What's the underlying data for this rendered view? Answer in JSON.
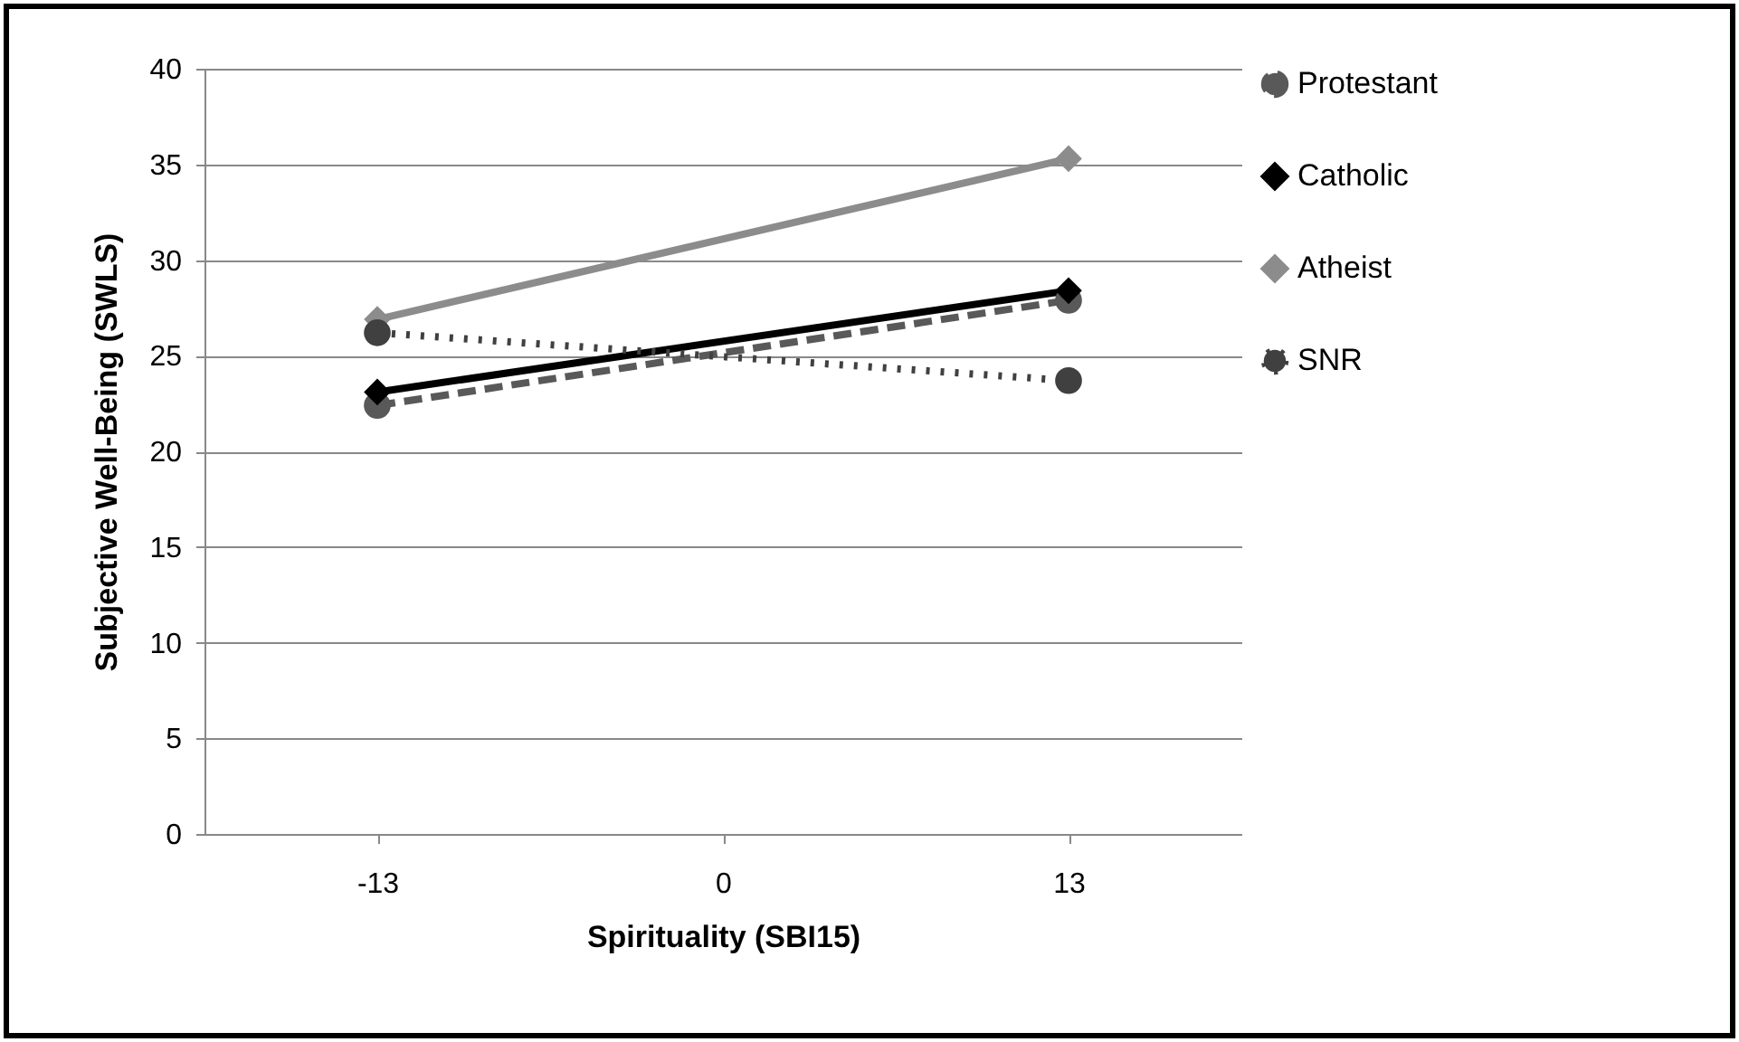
{
  "chart_data": {
    "type": "line",
    "xlabel": "Spirituality (SBI15)",
    "ylabel": "Subjective Well-Being (SWLS)",
    "categories": [
      "-13",
      "0",
      "13"
    ],
    "series": [
      {
        "name": "Protestant",
        "color": "#595959",
        "marker": "circle",
        "line_style": "dashed",
        "values": [
          22.4,
          null,
          27.9
        ]
      },
      {
        "name": "Catholic",
        "color": "#000000",
        "marker": "diamond",
        "line_style": "solid",
        "values": [
          23.1,
          null,
          28.4
        ]
      },
      {
        "name": "Atheist",
        "color": "#8c8c8c",
        "marker": "diamond",
        "line_style": "solid",
        "values": [
          26.9,
          null,
          35.3
        ]
      },
      {
        "name": "SNR",
        "color": "#404040",
        "marker": "circle",
        "line_style": "dotted",
        "values": [
          26.2,
          null,
          23.7
        ]
      }
    ],
    "ylim": [
      0,
      40
    ],
    "yticks": [
      0,
      5,
      10,
      15,
      20,
      25,
      30,
      35,
      40
    ],
    "grid": "y",
    "legend": "right"
  }
}
